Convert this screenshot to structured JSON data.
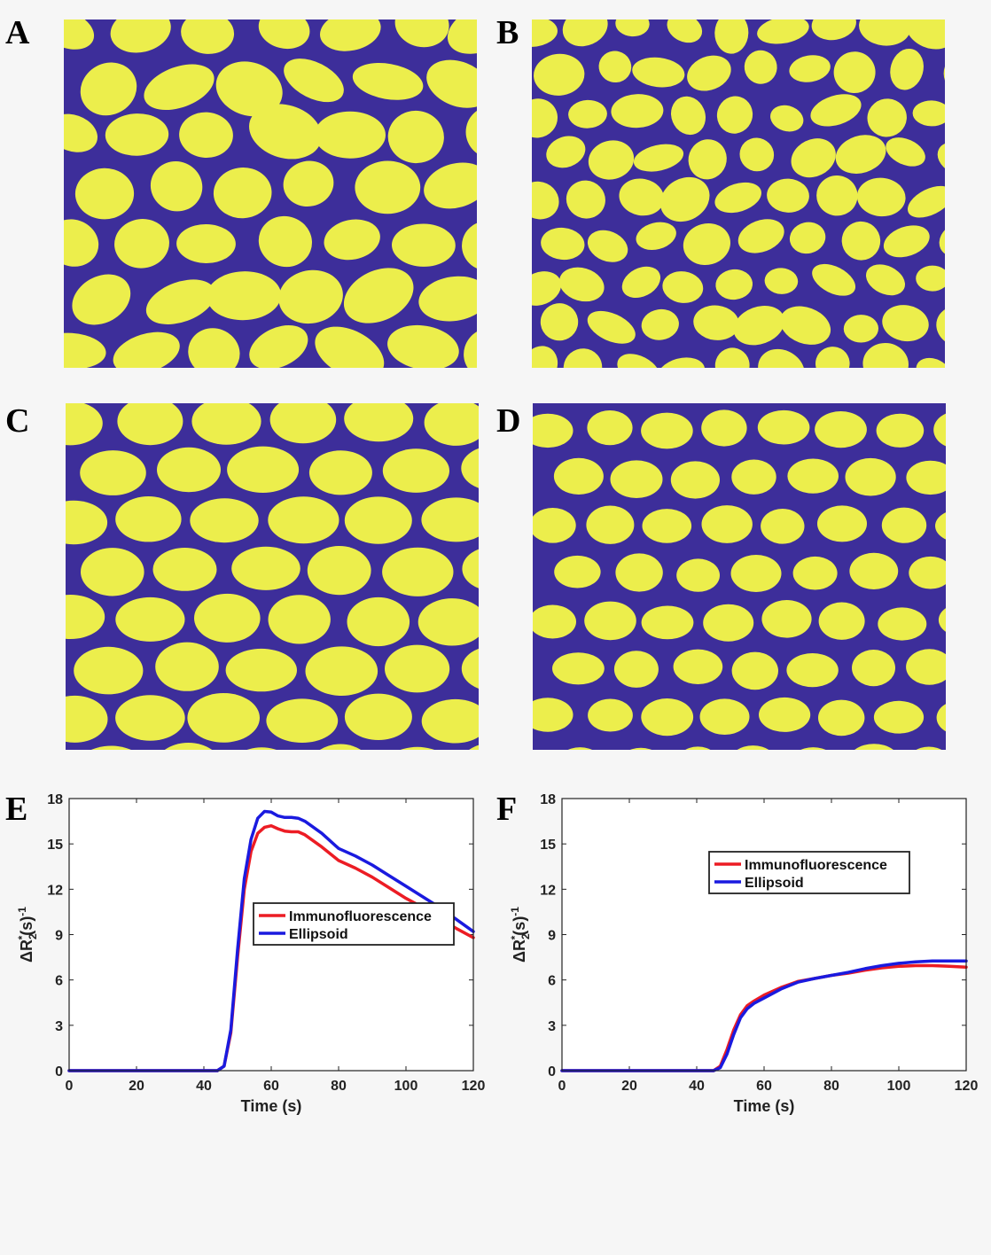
{
  "colors": {
    "cell": "#ecee4c",
    "background": "#3d2e9a",
    "red": "#ec1c24",
    "blue": "#1a1adf"
  },
  "panels": {
    "A": {
      "label": "A"
    },
    "B": {
      "label": "B"
    },
    "C": {
      "label": "C"
    },
    "D": {
      "label": "D"
    },
    "E": {
      "label": "E"
    },
    "F": {
      "label": "F"
    }
  },
  "chart_data": [
    {
      "type": "line",
      "panel": "E",
      "xlabel": "Time (s)",
      "ylabel": "ΔR2*(s)-1",
      "xlim": [
        0,
        120
      ],
      "ylim": [
        0,
        18
      ],
      "xticks": [
        "0",
        "20",
        "40",
        "60",
        "80",
        "100",
        "120"
      ],
      "yticks": [
        "0",
        "3",
        "6",
        "9",
        "12",
        "15",
        "18"
      ],
      "legend_position": "lower-right",
      "series": [
        {
          "name": "Immunofluorescence",
          "color": "#ec1c24",
          "x": [
            0,
            44,
            46,
            48,
            50,
            52,
            54,
            56,
            58,
            60,
            62,
            64,
            66,
            68,
            70,
            75,
            80,
            85,
            90,
            95,
            100,
            105,
            110,
            115,
            120
          ],
          "y": [
            0,
            0,
            0.3,
            2.5,
            7.5,
            12.0,
            14.5,
            15.7,
            16.1,
            16.2,
            16.0,
            15.85,
            15.8,
            15.8,
            15.6,
            14.8,
            13.9,
            13.4,
            12.8,
            12.1,
            11.4,
            10.8,
            10.1,
            9.4,
            8.8
          ]
        },
        {
          "name": "Ellipsoid",
          "color": "#1a1adf",
          "x": [
            0,
            44,
            46,
            48,
            50,
            52,
            54,
            56,
            58,
            60,
            62,
            64,
            66,
            68,
            70,
            75,
            80,
            85,
            90,
            95,
            100,
            105,
            110,
            115,
            120
          ],
          "y": [
            0,
            0,
            0.3,
            2.7,
            8.0,
            12.7,
            15.3,
            16.7,
            17.15,
            17.1,
            16.85,
            16.75,
            16.75,
            16.7,
            16.5,
            15.7,
            14.7,
            14.2,
            13.6,
            12.9,
            12.2,
            11.5,
            10.8,
            10.0,
            9.2
          ]
        }
      ]
    },
    {
      "type": "line",
      "panel": "F",
      "xlabel": "Time (s)",
      "ylabel": "ΔR2*(s)-1",
      "xlim": [
        0,
        120
      ],
      "ylim": [
        0,
        18
      ],
      "xticks": [
        "0",
        "20",
        "40",
        "60",
        "80",
        "100",
        "120"
      ],
      "yticks": [
        "0",
        "3",
        "6",
        "9",
        "12",
        "15",
        "18"
      ],
      "legend_position": "top-center",
      "series": [
        {
          "name": "Immunofluorescence",
          "color": "#ec1c24",
          "x": [
            0,
            45,
            47,
            49,
            51,
            53,
            55,
            57,
            60,
            65,
            70,
            75,
            80,
            85,
            90,
            95,
            100,
            105,
            110,
            115,
            120
          ],
          "y": [
            0,
            0,
            0.3,
            1.4,
            2.7,
            3.7,
            4.3,
            4.6,
            5.0,
            5.5,
            5.9,
            6.1,
            6.3,
            6.45,
            6.65,
            6.8,
            6.9,
            6.95,
            6.95,
            6.9,
            6.85
          ]
        },
        {
          "name": "Ellipsoid",
          "color": "#1a1adf",
          "x": [
            0,
            45,
            47,
            49,
            51,
            53,
            55,
            57,
            60,
            65,
            70,
            75,
            80,
            85,
            90,
            95,
            100,
            105,
            110,
            115,
            120
          ],
          "y": [
            0,
            0,
            0.2,
            1.1,
            2.4,
            3.5,
            4.1,
            4.45,
            4.8,
            5.4,
            5.85,
            6.1,
            6.3,
            6.5,
            6.75,
            6.95,
            7.1,
            7.2,
            7.25,
            7.25,
            7.25
          ]
        }
      ]
    }
  ]
}
